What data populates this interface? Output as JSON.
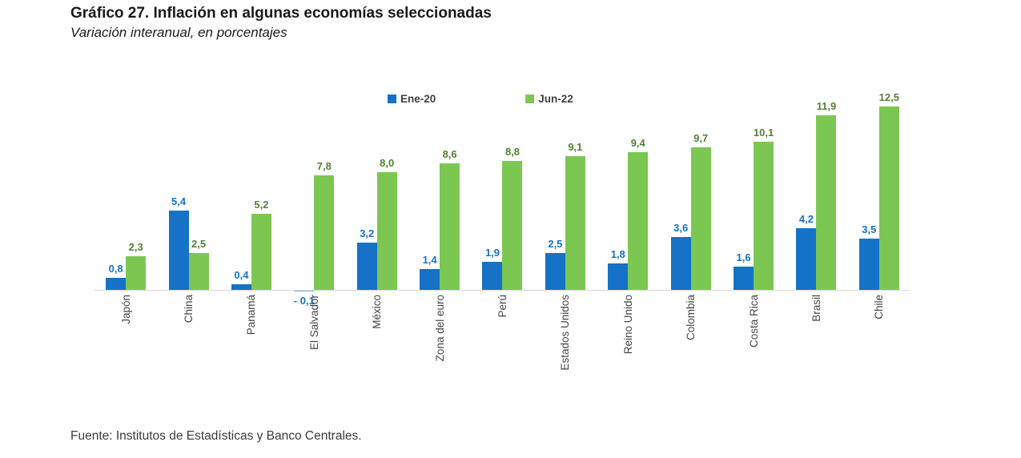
{
  "title": "Gráfico 27. Inflación en algunas economías seleccionadas",
  "subtitle": "Variación interanual, en porcentajes",
  "source": "Fuente: Institutos de Estadísticas y Banco Centrales.",
  "colors": {
    "ene20_bar": "#1572C6",
    "ene20_label": "#1572C6",
    "jun22_bar": "#7CC752",
    "jun22_label": "#538135",
    "axis_line": "#D8D8D8",
    "title_text": "#1A1A1A",
    "xlabel_text": "#444444"
  },
  "chart_data": {
    "type": "bar",
    "title": "Gráfico 27. Inflación en algunas economías seleccionadas",
    "subtitle": "Variación interanual, en porcentajes",
    "xlabel": "",
    "ylabel": "",
    "ylim": [
      -0.5,
      13.2
    ],
    "grid": false,
    "legend_position": "top",
    "categories": [
      "Japón",
      "China",
      "Panamá",
      "El Salvador",
      "México",
      "Zona del euro",
      "Perú",
      "Estados Unidos",
      "Reino Unido",
      "Colombia",
      "Costa Rica",
      "Brasil",
      "Chile"
    ],
    "series": [
      {
        "name": "Ene-20",
        "color": "#1572C6",
        "label_color": "#1572C6",
        "values": [
          0.8,
          5.4,
          0.4,
          -0.1,
          3.2,
          1.4,
          1.9,
          2.5,
          1.8,
          3.6,
          1.6,
          4.2,
          3.5
        ],
        "labels": [
          "0,8",
          "5,4",
          "0,4",
          "- 0,1",
          "3,2",
          "1,4",
          "1,9",
          "2,5",
          "1,8",
          "3,6",
          "1,6",
          "4,2",
          "3,5"
        ]
      },
      {
        "name": "Jun-22",
        "color": "#7CC752",
        "label_color": "#538135",
        "values": [
          2.3,
          2.5,
          5.2,
          7.8,
          8.0,
          8.6,
          8.8,
          9.1,
          9.4,
          9.7,
          10.1,
          11.9,
          12.5
        ],
        "labels": [
          "2,3",
          "2,5",
          "5,2",
          "7,8",
          "8,0",
          "8,6",
          "8,8",
          "9,1",
          "9,4",
          "9,7",
          "10,1",
          "11,9",
          "12,5"
        ]
      }
    ]
  }
}
